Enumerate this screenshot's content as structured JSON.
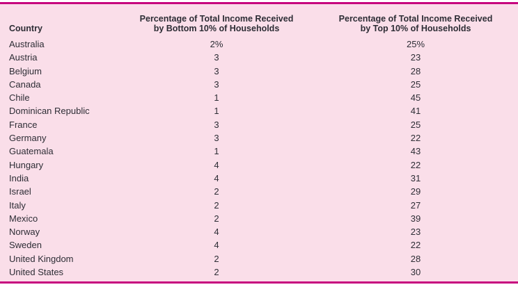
{
  "colors": {
    "panel_bg": "#fadee9",
    "border_accent": "#c6017e",
    "text": "#2d2d35"
  },
  "table": {
    "header": {
      "country": "Country",
      "bottom10_line1": "Percentage of Total Income Received",
      "bottom10_line2": "by Bottom 10% of Households",
      "top10_line1": "Percentage of Total Income Received",
      "top10_line2": "by Top 10% of Households"
    },
    "rows": [
      {
        "country": "Australia",
        "bottom10": "2%",
        "top10": "25%"
      },
      {
        "country": "Austria",
        "bottom10": "3",
        "top10": "23"
      },
      {
        "country": "Belgium",
        "bottom10": "3",
        "top10": "28"
      },
      {
        "country": "Canada",
        "bottom10": "3",
        "top10": "25"
      },
      {
        "country": "Chile",
        "bottom10": "1",
        "top10": "45"
      },
      {
        "country": "Dominican Republic",
        "bottom10": "1",
        "top10": "41"
      },
      {
        "country": "France",
        "bottom10": "3",
        "top10": "25"
      },
      {
        "country": "Germany",
        "bottom10": "3",
        "top10": "22"
      },
      {
        "country": "Guatemala",
        "bottom10": "1",
        "top10": "43"
      },
      {
        "country": "Hungary",
        "bottom10": "4",
        "top10": "22"
      },
      {
        "country": "India",
        "bottom10": "4",
        "top10": "31"
      },
      {
        "country": "Israel",
        "bottom10": "2",
        "top10": "29"
      },
      {
        "country": "Italy",
        "bottom10": "2",
        "top10": "27"
      },
      {
        "country": "Mexico",
        "bottom10": "2",
        "top10": "39"
      },
      {
        "country": "Norway",
        "bottom10": "4",
        "top10": "23"
      },
      {
        "country": "Sweden",
        "bottom10": "4",
        "top10": "22"
      },
      {
        "country": "United Kingdom",
        "bottom10": "2",
        "top10": "28"
      },
      {
        "country": "United States",
        "bottom10": "2",
        "top10": "30"
      }
    ]
  },
  "chart_data": {
    "type": "table",
    "title": "",
    "columns": [
      "Country",
      "Percentage of Total Income Received by Bottom 10% of Households",
      "Percentage of Total Income Received by Top 10% of Households"
    ],
    "units": "percent of total income",
    "rows": [
      [
        "Australia",
        2,
        25
      ],
      [
        "Austria",
        3,
        23
      ],
      [
        "Belgium",
        3,
        28
      ],
      [
        "Canada",
        3,
        25
      ],
      [
        "Chile",
        1,
        45
      ],
      [
        "Dominican Republic",
        1,
        41
      ],
      [
        "France",
        3,
        25
      ],
      [
        "Germany",
        3,
        22
      ],
      [
        "Guatemala",
        1,
        43
      ],
      [
        "Hungary",
        4,
        22
      ],
      [
        "India",
        4,
        31
      ],
      [
        "Israel",
        2,
        29
      ],
      [
        "Italy",
        2,
        27
      ],
      [
        "Mexico",
        2,
        39
      ],
      [
        "Norway",
        4,
        23
      ],
      [
        "Sweden",
        4,
        22
      ],
      [
        "United Kingdom",
        2,
        28
      ],
      [
        "United States",
        2,
        30
      ]
    ]
  }
}
